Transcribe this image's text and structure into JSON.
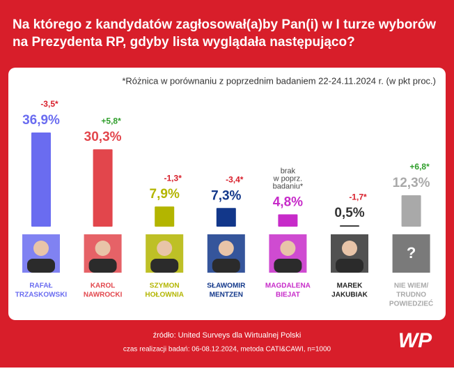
{
  "chart_data": {
    "type": "bar",
    "title": [
      "Na którego z kandydatów zagłosował(a)by Pan(i) w I turze wyborów",
      "na Prezydenta RP, gdyby lista wyglądała następująco?"
    ],
    "note": "*Różnica w porównaniu z poprzednim badaniem 22-24.11.2024 r. (w pkt proc.)",
    "categories": [
      [
        "RAFAŁ",
        "TRZASKOWSKI"
      ],
      [
        "KAROL",
        "NAWROCKI"
      ],
      [
        "SZYMON",
        "HOŁOWNIA"
      ],
      [
        "SŁAWOMIR",
        "MENTZEN"
      ],
      [
        "MAGDALENA",
        "BIEJAT"
      ],
      [
        "MAREK",
        "JAKUBIAK"
      ],
      [
        "NIE WIEM/",
        "TRUDNO",
        "POWIEDZIEĆ"
      ]
    ],
    "values": [
      36.9,
      30.3,
      7.9,
      7.3,
      4.8,
      0.5,
      12.3
    ],
    "value_labels": [
      "36,9%",
      "30,3%",
      "7,9%",
      "7,3%",
      "4,8%",
      "0,5%",
      "12,3%"
    ],
    "colors": [
      "#6a6cf0",
      "#e2464c",
      "#b3b500",
      "#12378a",
      "#c72bc9",
      "#333333",
      "#a9a9a9"
    ],
    "changes": [
      -3.5,
      5.8,
      -1.3,
      -3.4,
      null,
      -1.7,
      6.8
    ],
    "change_labels": [
      [
        "-3,5*"
      ],
      [
        "+5,8*"
      ],
      [
        "-1,3*"
      ],
      [
        "-3,4*"
      ],
      [
        "brak",
        "w poprz.",
        "badaniu*"
      ],
      [
        "-1,7*"
      ],
      [
        "+6,8*"
      ]
    ],
    "unknown_symbol": "?",
    "source": [
      "źródło: United Surveys dla Wirtualnej Polski",
      "czas realizacji badań: 06-08.12.2024, metoda CATI&CAWI, n=1000"
    ],
    "logo": "WP"
  }
}
